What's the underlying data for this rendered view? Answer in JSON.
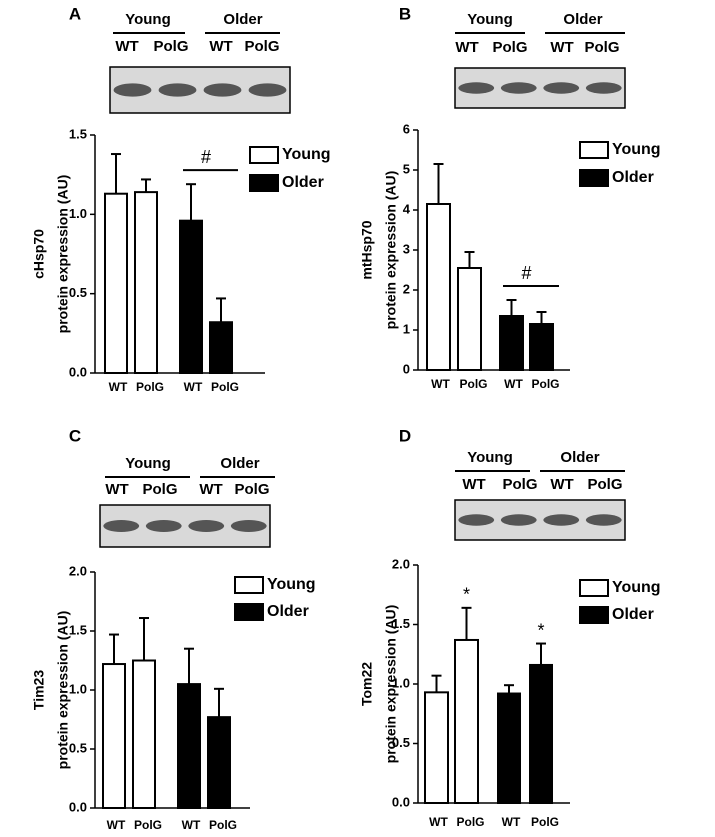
{
  "chart_data": [
    {
      "type": "bar",
      "panel": "A",
      "ylabel": [
        "cHsp70",
        "protein expression (AU)"
      ],
      "categories": [
        "WT",
        "PolG"
      ],
      "series": [
        {
          "name": "Young",
          "color": "#ffffff",
          "values": [
            1.13,
            1.14
          ],
          "errors": [
            0.25,
            0.08
          ]
        },
        {
          "name": "Older",
          "color": "#000000",
          "values": [
            0.96,
            0.32
          ],
          "errors": [
            0.23,
            0.15
          ]
        }
      ],
      "ylim": [
        0,
        1.5
      ],
      "yticks": [
        {
          "value": 0,
          "label": "0.0"
        },
        {
          "value": 0.5,
          "label": "0.5"
        },
        {
          "value": 1,
          "label": "1.0"
        },
        {
          "value": 1.5,
          "label": "1.5"
        }
      ],
      "annotations": [
        {
          "text": "#",
          "series": 1
        }
      ]
    },
    {
      "type": "bar",
      "panel": "B",
      "ylabel": [
        "mtHsp70",
        "protein expression (AU)"
      ],
      "categories": [
        "WT",
        "PolG"
      ],
      "series": [
        {
          "name": "Young",
          "color": "#ffffff",
          "values": [
            4.15,
            2.55
          ],
          "errors": [
            1.0,
            0.4
          ]
        },
        {
          "name": "Older",
          "color": "#000000",
          "values": [
            1.35,
            1.15
          ],
          "errors": [
            0.4,
            0.3
          ]
        }
      ],
      "ylim": [
        0,
        6
      ],
      "yticks": [
        0,
        1,
        2,
        3,
        4,
        5,
        6
      ],
      "annotations": [
        {
          "text": "#",
          "series": 1
        }
      ]
    },
    {
      "type": "bar",
      "panel": "C",
      "ylabel": [
        "Tim23",
        "protein expression (AU)"
      ],
      "categories": [
        "WT",
        "PolG"
      ],
      "series": [
        {
          "name": "Young",
          "color": "#ffffff",
          "values": [
            1.22,
            1.25
          ],
          "errors": [
            0.25,
            0.36
          ]
        },
        {
          "name": "Older",
          "color": "#000000",
          "values": [
            1.05,
            0.77
          ],
          "errors": [
            0.3,
            0.24
          ]
        }
      ],
      "ylim": [
        0,
        2
      ],
      "yticks": [
        {
          "value": 0,
          "label": "0.0"
        },
        {
          "value": 0.5,
          "label": "0.5"
        },
        {
          "value": 1,
          "label": "1.0"
        },
        {
          "value": 1.5,
          "label": "1.5"
        },
        {
          "value": 2,
          "label": "2.0"
        }
      ],
      "annotations": []
    },
    {
      "type": "bar",
      "panel": "D",
      "ylabel": [
        "Tom22",
        "protein expression (AU)"
      ],
      "categories": [
        "WT",
        "PolG"
      ],
      "series": [
        {
          "name": "Young",
          "color": "#ffffff",
          "values": [
            0.93,
            1.37
          ],
          "errors": [
            0.14,
            0.27
          ]
        },
        {
          "name": "Older",
          "color": "#000000",
          "values": [
            0.92,
            1.16
          ],
          "errors": [
            0.07,
            0.18
          ]
        }
      ],
      "ylim": [
        0,
        2
      ],
      "yticks": [
        {
          "value": 0,
          "label": "0.0"
        },
        {
          "value": 0.5,
          "label": "0.5"
        },
        {
          "value": 1,
          "label": "1.0"
        },
        {
          "value": 1.5,
          "label": "1.5"
        },
        {
          "value": 2,
          "label": "2.0"
        }
      ],
      "annotations": [
        {
          "text": "*",
          "series": 0,
          "index": 1
        },
        {
          "text": "*",
          "series": 1,
          "index": 1
        }
      ]
    }
  ]
}
